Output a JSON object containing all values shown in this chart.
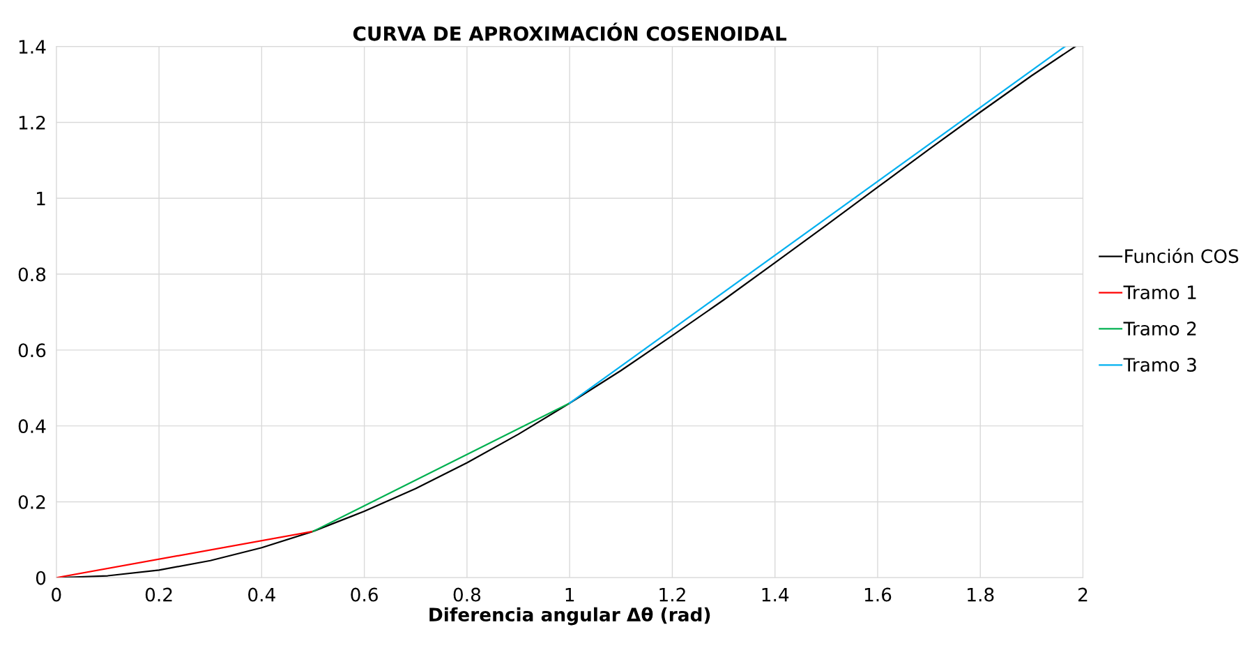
{
  "chart_data": {
    "type": "line",
    "title": "CURVA DE APROXIMACIÓN COSENOIDAL",
    "xlabel": "Diferencia angular Δθ (rad)",
    "xlim": [
      0,
      2
    ],
    "xticks": [
      0,
      0.2,
      0.4,
      0.6,
      0.8,
      1,
      1.2,
      1.4,
      1.6,
      1.8,
      2
    ],
    "ylim": [
      0,
      1.4
    ],
    "yticks": [
      0,
      0.2,
      0.4,
      0.6,
      0.8,
      1,
      1.2,
      1.4
    ],
    "grid": true,
    "legend": "right",
    "marker": "none",
    "line_style": "solid",
    "series": [
      {
        "name": "Función COS",
        "color": "#000000",
        "x": [
          0,
          0.1,
          0.2,
          0.3,
          0.4,
          0.5,
          0.6,
          0.7,
          0.8,
          0.9,
          1.0,
          1.1,
          1.2,
          1.3,
          1.4,
          1.5,
          1.6,
          1.7,
          1.8,
          1.9,
          1.985
        ],
        "values": [
          0,
          0.005,
          0.02,
          0.045,
          0.079,
          0.122,
          0.175,
          0.235,
          0.303,
          0.378,
          0.46,
          0.546,
          0.638,
          0.732,
          0.83,
          0.929,
          1.029,
          1.129,
          1.227,
          1.323,
          1.4
        ]
      },
      {
        "name": "Tramo 1",
        "color": "#ff0000",
        "x": [
          0,
          0.5
        ],
        "values": [
          0,
          0.122
        ]
      },
      {
        "name": "Tramo 2",
        "color": "#00b050",
        "x": [
          0.5,
          1
        ],
        "values": [
          0.122,
          0.46
        ]
      },
      {
        "name": "Tramo 3",
        "color": "#00b0f0",
        "x": [
          1,
          1.965
        ],
        "values": [
          0.46,
          1.4
        ]
      }
    ]
  }
}
